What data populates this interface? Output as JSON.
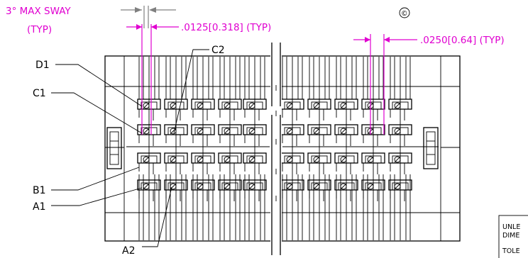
{
  "annotations": {
    "sway_line1": "3° MAX SWAY",
    "sway_line2": "(TYP)",
    "pitch_small": ".0125[0.318] (TYP)",
    "pitch_large": ".0250[0.64] (TYP)",
    "symbol": "©"
  },
  "callouts": {
    "d1": "D1",
    "c1": "C1",
    "c2": "C2",
    "b1": "B1",
    "a1": "A1",
    "a2": "A2"
  },
  "note": {
    "line1": "UNLE",
    "line2": "DIME",
    "line3": "TOLE"
  },
  "colors": {
    "dimension": "#e000d0",
    "outline": "#000000",
    "sway_arrow": "#808080"
  }
}
